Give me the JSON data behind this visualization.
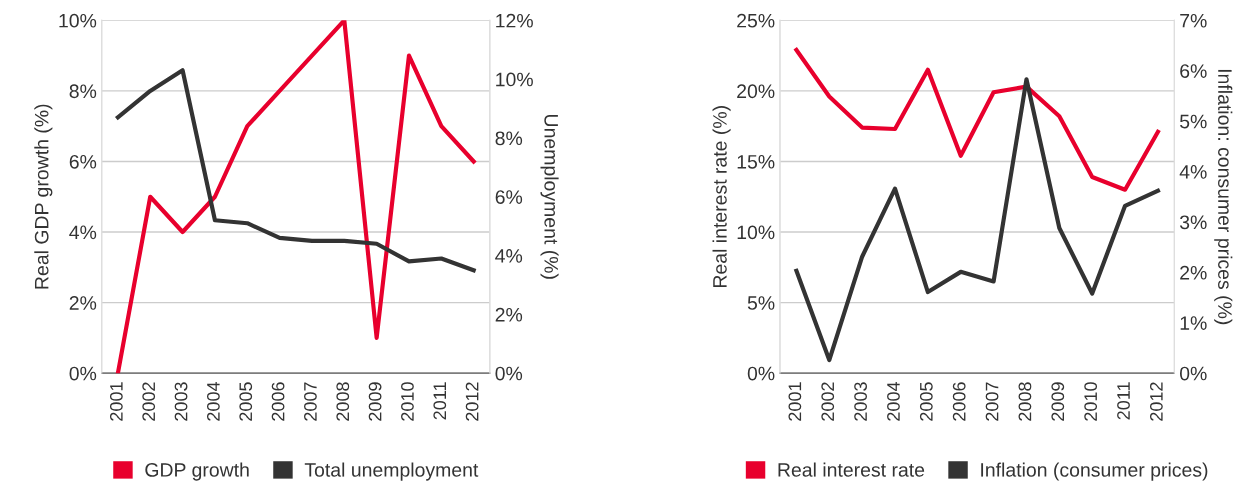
{
  "chart_data": [
    {
      "type": "line",
      "categories": [
        "2001",
        "2002",
        "2003",
        "2004",
        "2005",
        "2006",
        "2007",
        "2008",
        "2009",
        "2010",
        "2011",
        "2012"
      ],
      "ylabel": "Real GDP growth (%)",
      "y2label": "Unemployment (%)",
      "ylim": [
        0,
        10
      ],
      "yticks": [
        {
          "value": 0,
          "label": "0%"
        },
        {
          "value": 2,
          "label": "2%"
        },
        {
          "value": 4,
          "label": "4%"
        },
        {
          "value": 6,
          "label": "6%"
        },
        {
          "value": 8,
          "label": "8%"
        },
        {
          "value": 10,
          "label": "10%"
        }
      ],
      "y2lim": [
        0,
        12
      ],
      "y2ticks": [
        {
          "value": 0,
          "label": "0%"
        },
        {
          "value": 2,
          "label": "2%"
        },
        {
          "value": 4,
          "label": "4%"
        },
        {
          "value": 6,
          "label": "6%"
        },
        {
          "value": 8,
          "label": "8%"
        },
        {
          "value": 10,
          "label": "10%"
        },
        {
          "value": 12,
          "label": "12%"
        }
      ],
      "grid": "y",
      "legend": "bottom",
      "series": [
        {
          "name": "GDP growth",
          "color": "#e8002d",
          "values": [
            0,
            5,
            4,
            5,
            7,
            8,
            9,
            10,
            1,
            9,
            7,
            6
          ]
        },
        {
          "name": "Total unemployment",
          "color": "#333333",
          "axis": "y2",
          "values": [
            8.7,
            9.6,
            10.3,
            5.2,
            5.1,
            4.6,
            4.5,
            4.5,
            4.4,
            3.8,
            3.9,
            3.5
          ]
        }
      ]
    },
    {
      "type": "line",
      "categories": [
        "2001",
        "2002",
        "2003",
        "2004",
        "2005",
        "2006",
        "2007",
        "2008",
        "2009",
        "2010",
        "2011",
        "2012"
      ],
      "ylabel": "Real interest rate (%)",
      "y2label": "Inflation: consumer prices (%)",
      "ylim": [
        0,
        25
      ],
      "yticks": [
        {
          "value": 0,
          "label": "0%"
        },
        {
          "value": 5,
          "label": "5%"
        },
        {
          "value": 10,
          "label": "10%"
        },
        {
          "value": 15,
          "label": "15%"
        },
        {
          "value": 20,
          "label": "20%"
        },
        {
          "value": 25,
          "label": "25%"
        }
      ],
      "y2lim": [
        0,
        7
      ],
      "y2ticks": [
        {
          "value": 0,
          "label": "0%"
        },
        {
          "value": 1,
          "label": "1%"
        },
        {
          "value": 2,
          "label": "2%"
        },
        {
          "value": 3,
          "label": "3%"
        },
        {
          "value": 4,
          "label": "4%"
        },
        {
          "value": 5,
          "label": "5%"
        },
        {
          "value": 6,
          "label": "6%"
        },
        {
          "value": 7,
          "label": "7%"
        }
      ],
      "grid": "y",
      "legend": "bottom",
      "series": [
        {
          "name": "Real interest rate",
          "color": "#e8002d",
          "values": [
            22.9,
            19.6,
            17.4,
            17.3,
            21.5,
            15.4,
            19.9,
            20.3,
            18.2,
            13.9,
            13.0,
            17.1
          ]
        },
        {
          "name": "Inflation (consumer prices)",
          "color": "#333333",
          "axis": "y2",
          "values": [
            2.03,
            0.26,
            2.31,
            3.66,
            1.61,
            2.01,
            1.82,
            5.83,
            2.88,
            1.58,
            3.32,
            3.62
          ]
        }
      ]
    }
  ]
}
